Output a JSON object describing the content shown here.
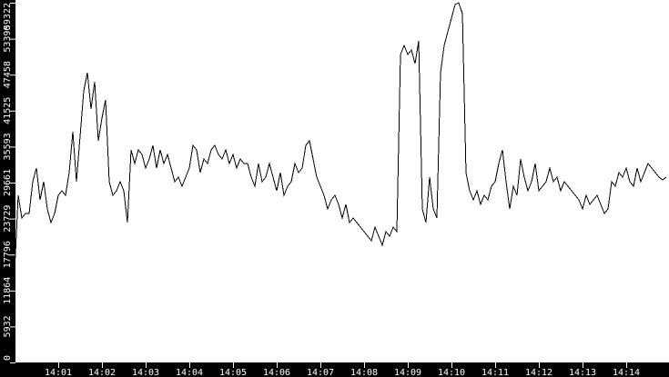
{
  "chart_data": {
    "type": "line",
    "title": "",
    "xlabel": "",
    "ylabel": "",
    "ylim": [
      0,
      59322
    ],
    "xlim": [
      "14:00:00",
      "14:15:00"
    ],
    "grid": false,
    "colors": {
      "background": "#000000",
      "plot": "#ffffff",
      "line": "#000000",
      "text": "#ffffff"
    },
    "y_ticks": [
      "0",
      "5932",
      "11864",
      "17796",
      "23729",
      "29661",
      "35593",
      "41525",
      "47458",
      "53390",
      "59322"
    ],
    "x_ticks": [
      "14:01",
      "14:02",
      "14:03",
      "14:04",
      "14:05",
      "14:06",
      "14:07",
      "14:08",
      "14:09",
      "14:10",
      "14:11",
      "14:12",
      "14:13",
      "14:14"
    ],
    "x": [
      "14:00:00",
      "14:00:05",
      "14:00:10",
      "14:00:15",
      "14:00:20",
      "14:00:25",
      "14:00:30",
      "14:00:35",
      "14:00:40",
      "14:00:45",
      "14:00:50",
      "14:00:55",
      "14:01:00",
      "14:01:05",
      "14:01:10",
      "14:01:15",
      "14:01:20",
      "14:01:25",
      "14:01:30",
      "14:01:35",
      "14:01:40",
      "14:01:45",
      "14:01:50",
      "14:01:55",
      "14:02:00",
      "14:02:05",
      "14:02:10",
      "14:02:15",
      "14:02:20",
      "14:02:25",
      "14:02:30",
      "14:02:35",
      "14:02:40",
      "14:02:45",
      "14:02:50",
      "14:02:55",
      "14:03:00",
      "14:03:05",
      "14:03:10",
      "14:03:15",
      "14:03:20",
      "14:03:25",
      "14:03:30",
      "14:03:35",
      "14:03:40",
      "14:03:45",
      "14:03:50",
      "14:03:55",
      "14:04:00",
      "14:04:05",
      "14:04:10",
      "14:04:15",
      "14:04:20",
      "14:04:25",
      "14:04:30",
      "14:04:35",
      "14:04:40",
      "14:04:45",
      "14:04:50",
      "14:04:55",
      "14:05:00",
      "14:05:05",
      "14:05:10",
      "14:05:15",
      "14:05:20",
      "14:05:25",
      "14:05:30",
      "14:05:35",
      "14:05:40",
      "14:05:45",
      "14:05:50",
      "14:05:55",
      "14:06:00",
      "14:06:05",
      "14:06:10",
      "14:06:15",
      "14:06:20",
      "14:06:25",
      "14:06:30",
      "14:06:35",
      "14:06:40",
      "14:06:45",
      "14:06:50",
      "14:06:55",
      "14:07:00",
      "14:07:05",
      "14:07:10",
      "14:07:15",
      "14:07:20",
      "14:07:25",
      "14:07:30",
      "14:07:35",
      "14:07:40",
      "14:07:45",
      "14:07:50",
      "14:07:55",
      "14:08:00",
      "14:08:05",
      "14:08:10",
      "14:08:15",
      "14:08:20",
      "14:08:25",
      "14:08:30",
      "14:08:35",
      "14:08:40",
      "14:08:45",
      "14:08:50",
      "14:08:55",
      "14:09:00",
      "14:09:05",
      "14:09:10",
      "14:09:15",
      "14:09:20",
      "14:09:25",
      "14:09:30",
      "14:09:35",
      "14:09:40",
      "14:09:45",
      "14:09:50",
      "14:09:55",
      "14:10:00",
      "14:10:05",
      "14:10:10",
      "14:10:15",
      "14:10:20",
      "14:10:25",
      "14:10:30",
      "14:10:35",
      "14:10:40",
      "14:10:45",
      "14:10:50",
      "14:10:55",
      "14:11:00",
      "14:11:05",
      "14:11:10",
      "14:11:15",
      "14:11:20",
      "14:11:25",
      "14:11:30",
      "14:11:35",
      "14:11:40",
      "14:11:45",
      "14:11:50",
      "14:11:55",
      "14:12:00",
      "14:12:05",
      "14:12:10",
      "14:12:15",
      "14:12:20",
      "14:12:25",
      "14:12:30",
      "14:12:35",
      "14:12:40",
      "14:12:45",
      "14:12:50",
      "14:12:55",
      "14:13:00",
      "14:13:05",
      "14:13:10",
      "14:13:15",
      "14:13:20",
      "14:13:25",
      "14:13:30",
      "14:13:35",
      "14:13:40",
      "14:13:45",
      "14:13:50",
      "14:13:55",
      "14:14:00",
      "14:14:05",
      "14:14:10",
      "14:14:15",
      "14:14:20",
      "14:14:25",
      "14:14:30",
      "14:14:35",
      "14:14:40",
      "14:14:45",
      "14:14:50",
      "14:14:55"
    ],
    "series": [
      {
        "values": [
          14830,
          27560,
          23820,
          24570,
          24570,
          29810,
          32060,
          26810,
          29810,
          25320,
          23070,
          24570,
          27560,
          28310,
          27560,
          31310,
          38050,
          29810,
          37300,
          44790,
          47790,
          41790,
          46290,
          36550,
          40300,
          43290,
          29810,
          27560,
          28310,
          29810,
          28310,
          23070,
          35050,
          32810,
          35050,
          34300,
          32060,
          33560,
          35800,
          32060,
          35050,
          32810,
          34300,
          32060,
          29810,
          30560,
          29060,
          30560,
          32060,
          35800,
          35050,
          31310,
          33560,
          32810,
          35050,
          35800,
          34300,
          33560,
          35050,
          32810,
          34300,
          32060,
          33560,
          32810,
          32810,
          30560,
          29060,
          32810,
          29810,
          30560,
          32810,
          30560,
          28310,
          31310,
          27560,
          29060,
          29810,
          32810,
          31310,
          32060,
          35800,
          36550,
          33560,
          30560,
          29060,
          27560,
          25320,
          26810,
          27560,
          26070,
          23820,
          26070,
          23070,
          23820,
          23070,
          22320,
          21570,
          20820,
          20070,
          22320,
          20820,
          19320,
          21570,
          20820,
          22320,
          21570,
          50780,
          52280,
          50780,
          51530,
          49280,
          53030,
          25320,
          23070,
          30560,
          25320,
          23820,
          47790,
          52280,
          54530,
          56770,
          59020,
          59300,
          57520,
          31310,
          28310,
          26810,
          28310,
          26070,
          27560,
          26810,
          29060,
          29810,
          32810,
          35050,
          29810,
          25320,
          29060,
          27560,
          33560,
          30560,
          28310,
          29810,
          32810,
          28310,
          29060,
          29810,
          32060,
          29810,
          30560,
          28310,
          29810,
          29060,
          28310,
          27560,
          26810,
          25320,
          27560,
          26070,
          26810,
          27560,
          26070,
          24570,
          25320,
          29810,
          29060,
          31310,
          30560,
          32060,
          29810,
          29060,
          32060,
          29810,
          31310,
          32810,
          32060,
          31310,
          30560,
          30110,
          30560
        ]
      }
    ]
  }
}
